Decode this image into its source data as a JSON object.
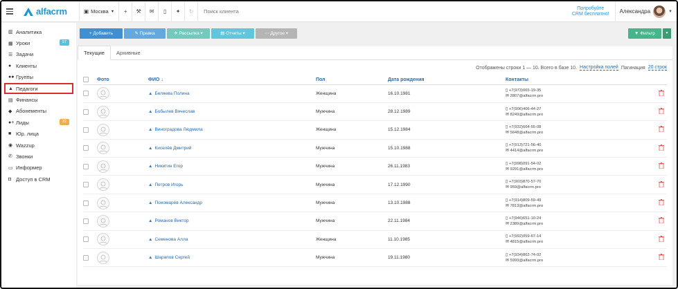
{
  "topbar": {
    "logo_text": "alfacrm",
    "branch": "Москва",
    "search_placeholder": "Поиск клиента",
    "trial_line1": "Попробуйте",
    "trial_line2": "CRM бесплатно!",
    "user_name": "Александра"
  },
  "sidebar": {
    "items": [
      {
        "label": "Аналитика",
        "icon": "bar-chart-icon"
      },
      {
        "label": "Уроки",
        "icon": "calendar-icon",
        "badge": "57",
        "badge_color": "#5bc0de"
      },
      {
        "label": "Задачи",
        "icon": "tasks-icon"
      },
      {
        "label": "Клиенты",
        "icon": "user-icon"
      },
      {
        "label": "Группы",
        "icon": "group-icon"
      },
      {
        "label": "Педагоги",
        "icon": "graduation-cap-icon"
      },
      {
        "label": "Финансы",
        "icon": "money-icon"
      },
      {
        "label": "Абонементы",
        "icon": "tag-icon"
      },
      {
        "label": "Лиды",
        "icon": "user-plus-icon",
        "badge": "22",
        "badge_color": "#f0ad4e"
      },
      {
        "label": "Юр. лица",
        "icon": "briefcase-icon"
      },
      {
        "label": "Wazzup",
        "icon": "whatsapp-icon"
      },
      {
        "label": "Звонки",
        "icon": "phone-icon"
      },
      {
        "label": "Информер",
        "icon": "credit-card-icon"
      },
      {
        "label": "Доступ в CRM",
        "icon": "lock-icon"
      }
    ]
  },
  "toolbar": {
    "add": "+ Добавить",
    "edit": "✎ Правка",
    "mail": "✈ Рассылка ▾",
    "reports": "▤ Отчеты ▾",
    "other": "⋯ Другое ▾",
    "filter": "▼ Фильтр"
  },
  "tabs": [
    "Текущие",
    "Архивные"
  ],
  "info": {
    "shown": "Отображены строки 1 — 10. Всего в базе 10.",
    "settings": "Настройка полей",
    "pagination_label": "Пагинация",
    "pagination_value": "20 строк"
  },
  "columns": {
    "photo": "Фото",
    "fio": "ФИО ↓",
    "gender": "Пол",
    "birth": "Дата рождения",
    "contacts": "Контакты"
  },
  "rows": [
    {
      "name": "Беляева Полина",
      "gender": "Женщина",
      "birth": "16.10.1981",
      "phone": "+7(973)065-19-35",
      "email": "2807@alfacrm.pro"
    },
    {
      "name": "Бобылев Вячеслав",
      "gender": "Мужчина",
      "birth": "28.12.1989",
      "phone": "+7(906)406-44-27",
      "email": "8249@alfacrm.pro"
    },
    {
      "name": "Виноградова Людмила",
      "gender": "Женщина",
      "birth": "15.12.1984",
      "phone": "+7(932)664-55-08",
      "email": "5648@alfacrm.pro"
    },
    {
      "name": "Киселёв Дмитрий",
      "gender": "Мужчина",
      "birth": "15.10.1988",
      "phone": "+7(913)721-56-40",
      "email": "4414@alfacrm.pro"
    },
    {
      "name": "Никитин Егор",
      "gender": "Мужчина",
      "birth": "26.11.1983",
      "phone": "+7(998)091-54-02",
      "email": "9291@alfacrm.pro"
    },
    {
      "name": "Петров Игорь",
      "gender": "Мужчина",
      "birth": "17.12.1990",
      "phone": "+7(903)870-57-70",
      "email": "959@alfacrm.pro"
    },
    {
      "name": "Пономарёв Александр",
      "gender": "Мужчина",
      "birth": "13.10.1988",
      "phone": "+7(914)809-59-49",
      "email": "7813@alfacrm.pro"
    },
    {
      "name": "Романов Виктор",
      "gender": "Мужчина",
      "birth": "22.11.1984",
      "phone": "+7(946)651-10-24",
      "email": "2389@alfacrm.pro"
    },
    {
      "name": "Семенова Алла",
      "gender": "Женщина",
      "birth": "11.10.1985",
      "phone": "+7(992)059-67-14",
      "email": "4815@alfacrm.pro"
    },
    {
      "name": "Шарапов Сергей",
      "gender": "Мужчина",
      "birth": "19.11.1980",
      "phone": "+7(934)862-74-02",
      "email": "5993@alfacrm.pro"
    }
  ],
  "active_sidebar": "Педагоги"
}
